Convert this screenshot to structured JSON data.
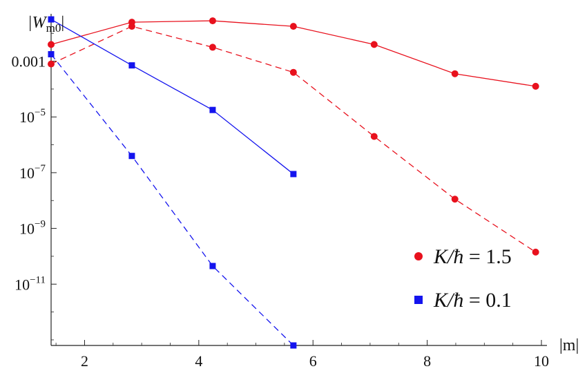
{
  "chart_data": {
    "type": "line",
    "scale": {
      "x": "linear",
      "y": "log10"
    },
    "xlim": [
      1.414,
      10
    ],
    "ylim_log10": [
      -13.2,
      -1.3
    ],
    "x_ticks": [
      {
        "value": 2,
        "label": "2"
      },
      {
        "value": 4,
        "label": "4"
      },
      {
        "value": 6,
        "label": "6"
      },
      {
        "value": 8,
        "label": "8"
      },
      {
        "value": 10,
        "label": "10"
      }
    ],
    "y_ticks": [
      {
        "log10": -3,
        "base": "0.001",
        "exp": ""
      },
      {
        "log10": -5,
        "base": "10",
        "exp": "−5"
      },
      {
        "log10": -7,
        "base": "10",
        "exp": "−7"
      },
      {
        "log10": -9,
        "base": "10",
        "exp": "−9"
      },
      {
        "log10": -11,
        "base": "10",
        "exp": "−11"
      }
    ],
    "xlabel": "|m|",
    "ylabel": {
      "pre": "|W",
      "sub": "m0",
      "post": "|"
    },
    "series": [
      {
        "name": "K/ħ = 1.5",
        "legend": {
          "lhs": "K/",
          "hbar": "ħ",
          "rhs": " = 1.5"
        },
        "color": "#e8111d",
        "marker": "circle",
        "style": "solid",
        "x": [
          1.414,
          2.828,
          4.243,
          5.657,
          7.071,
          8.485,
          9.899
        ],
        "log10_y": [
          -2.4,
          -1.6,
          -1.55,
          -1.75,
          -2.4,
          -3.45,
          -3.9
        ]
      },
      {
        "name": "",
        "color": "#e8111d",
        "marker": "circle",
        "style": "dashed",
        "x": [
          1.414,
          2.828,
          4.243,
          5.657,
          7.071,
          8.485,
          9.899
        ],
        "log10_y": [
          -3.1,
          -1.75,
          -2.5,
          -3.4,
          -5.7,
          -7.95,
          -9.85
        ]
      },
      {
        "name": "K/ħ = 0.1",
        "legend": {
          "lhs": "K/",
          "hbar": "ħ",
          "rhs": " = 0.1"
        },
        "color": "#1414ee",
        "marker": "square",
        "style": "solid",
        "x": [
          1.414,
          2.828,
          4.243,
          5.657
        ],
        "log10_y": [
          -1.5,
          -3.15,
          -4.75,
          -7.05
        ]
      },
      {
        "name": "",
        "color": "#1414ee",
        "marker": "square",
        "style": "dashed",
        "x": [
          1.414,
          2.828,
          4.243,
          5.657
        ],
        "log10_y": [
          -2.75,
          -6.4,
          -10.35,
          -13.2
        ]
      }
    ],
    "legend_position": "bottom-right",
    "grid": false
  }
}
